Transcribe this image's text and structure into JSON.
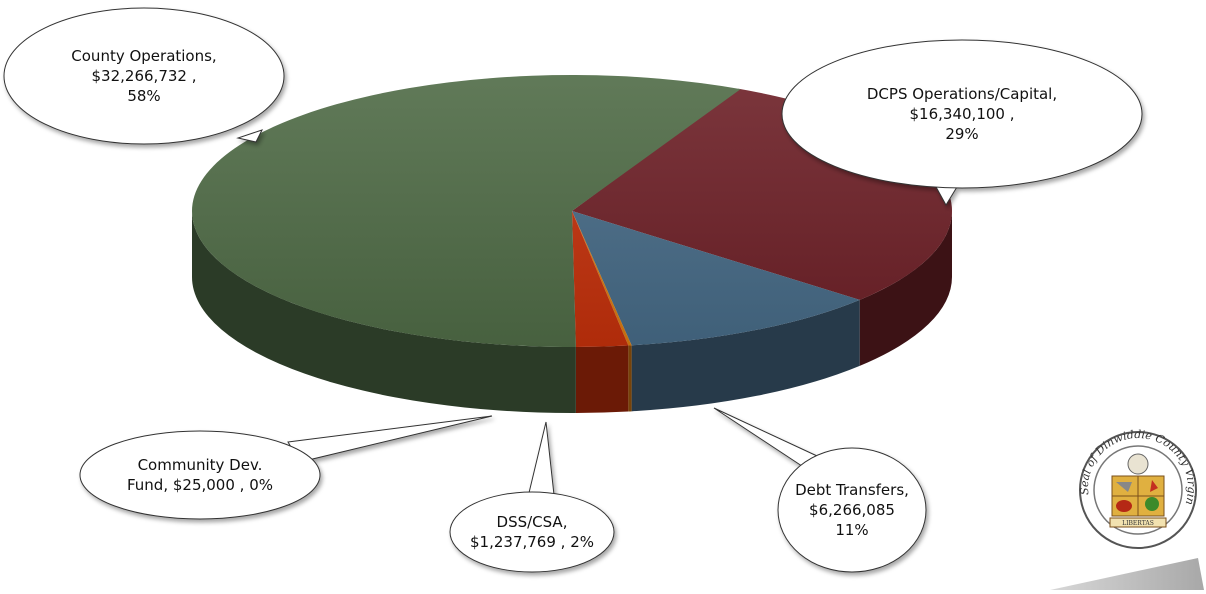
{
  "chart_data": {
    "type": "pie",
    "style": "3d",
    "slices": [
      {
        "label": "County Operations",
        "value": 32266732,
        "value_text": "$32,266,732",
        "percent_text": "58%",
        "color": "#4f6b46"
      },
      {
        "label": "DCPS Operations/Capital",
        "value": 16340100,
        "value_text": "$16,340,100",
        "percent_text": "29%",
        "color": "#6d2027"
      },
      {
        "label": "Debt Transfers",
        "value": 6266085,
        "value_text": "$6,266,085",
        "percent_text": "11%",
        "color": "#466a86"
      },
      {
        "label": "DSS/CSA",
        "value": 1237769,
        "value_text": "$1,237,769",
        "percent_text": "2%",
        "color": "#c2300b"
      },
      {
        "label": "Community Dev. Fund",
        "value": 25000,
        "value_text": "$25,000",
        "percent_text": "0%",
        "color": "#d87a10"
      }
    ],
    "callouts": {
      "county_ops": [
        "County Operations,",
        "$32,266,732 ,",
        "58%"
      ],
      "dcps": [
        "DCPS Operations/Capital,",
        "$16,340,100 ,",
        "29%"
      ],
      "debt": [
        "Debt Transfers,",
        "$6,266,085",
        "11%"
      ],
      "dss": [
        "DSS/CSA,",
        "$1,237,769 , 2%"
      ],
      "community": [
        "Community Dev.",
        "Fund,  $25,000 , 0%"
      ]
    }
  },
  "seal": {
    "text": "Seal of Dinwiddie County Virginia",
    "ribbon": "LIBERTAS"
  }
}
